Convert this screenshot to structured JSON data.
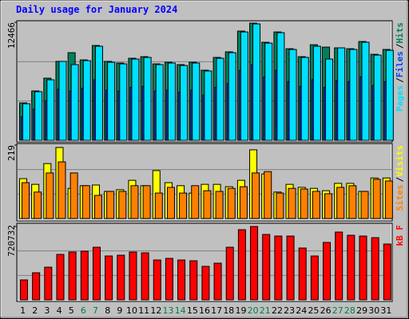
{
  "title": "Daily usage for January 2024",
  "legend_separator": "/",
  "chart_data": [
    {
      "type": "bar",
      "ylim": [
        0,
        12466
      ],
      "yticks": [
        12466
      ],
      "series": [
        {
          "name": "Hits",
          "color": "#00805c",
          "values": [
            3960,
            5220,
            6570,
            8340,
            9260,
            8500,
            10020,
            8340,
            8170,
            8670,
            8840,
            8080,
            8250,
            8000,
            8250,
            7410,
            8760,
            9350,
            11540,
            12380,
            10360,
            11450,
            9680,
            8840,
            10100,
            9850,
            9770,
            9680,
            10440,
            9090,
            9600
          ]
        },
        {
          "name": "Files",
          "color": "#0040ff",
          "values": [
            2500,
            3300,
            4200,
            5400,
            5200,
            5500,
            6400,
            5300,
            5200,
            5600,
            5700,
            5200,
            5300,
            5100,
            5300,
            4800,
            5600,
            6000,
            7400,
            8000,
            6700,
            7400,
            6200,
            5700,
            6400,
            5600,
            6300,
            6200,
            6700,
            5800,
            6200
          ]
        },
        {
          "name": "Pages",
          "color": "#00e0ff",
          "values": [
            3870,
            5140,
            6400,
            8340,
            8000,
            8420,
            9940,
            8250,
            8080,
            8590,
            8760,
            8000,
            8170,
            7910,
            8170,
            7330,
            8670,
            9260,
            11450,
            12300,
            10270,
            11370,
            9600,
            8760,
            9940,
            8590,
            9770,
            9600,
            10360,
            9010,
            9510
          ]
        }
      ]
    },
    {
      "type": "bar",
      "ylim": [
        0,
        219
      ],
      "yticks": [
        219
      ],
      "series": [
        {
          "name": "Visits",
          "color": "#ffff00",
          "values": [
            119,
            102,
            164,
            212,
            90,
            98,
            100,
            81,
            86,
            114,
            98,
            143,
            107,
            98,
            76,
            102,
            102,
            95,
            114,
            205,
            133,
            79,
            102,
            93,
            90,
            83,
            105,
            105,
            81,
            121,
            121
          ]
        },
        {
          "name": "Sites",
          "color": "#ff8000",
          "values": [
            107,
            79,
            136,
            169,
            136,
            98,
            69,
            81,
            81,
            98,
            98,
            76,
            93,
            76,
            98,
            83,
            81,
            90,
            95,
            136,
            140,
            76,
            90,
            88,
            81,
            74,
            93,
            98,
            81,
            117,
            112
          ]
        }
      ]
    },
    {
      "type": "bar",
      "ylim": [
        0,
        720732
      ],
      "yticks": [
        720732
      ],
      "series": [
        {
          "name": "kB F",
          "color": "#ff0000",
          "values": [
            195850,
            266360,
            321190,
            446540,
            470040,
            477870,
            517040,
            430870,
            438700,
            470040,
            462210,
            391700,
            407370,
            391700,
            383870,
            329030,
            360360,
            517040,
            689390,
            720732,
            642390,
            626720,
            626720,
            509210,
            430870,
            564050,
            665890,
            634550,
            626720,
            611050,
            548380
          ]
        }
      ],
      "categories": [
        "1",
        "2",
        "3",
        "4",
        "5",
        "6",
        "7",
        "8",
        "9",
        "10",
        "11",
        "12",
        "13",
        "14",
        "15",
        "16",
        "17",
        "18",
        "19",
        "20",
        "21",
        "22",
        "23",
        "24",
        "25",
        "26",
        "27",
        "28",
        "29",
        "30",
        "31"
      ],
      "category_colors": [
        "#000000",
        "#000000",
        "#000000",
        "#000000",
        "#000000",
        "#008040",
        "#008040",
        "#000000",
        "#000000",
        "#000000",
        "#000000",
        "#000000",
        "#008040",
        "#008040",
        "#000000",
        "#000000",
        "#000000",
        "#000000",
        "#000000",
        "#008040",
        "#008040",
        "#000000",
        "#000000",
        "#000000",
        "#000000",
        "#000000",
        "#008040",
        "#008040",
        "#000000",
        "#000000",
        "#000000"
      ]
    }
  ]
}
